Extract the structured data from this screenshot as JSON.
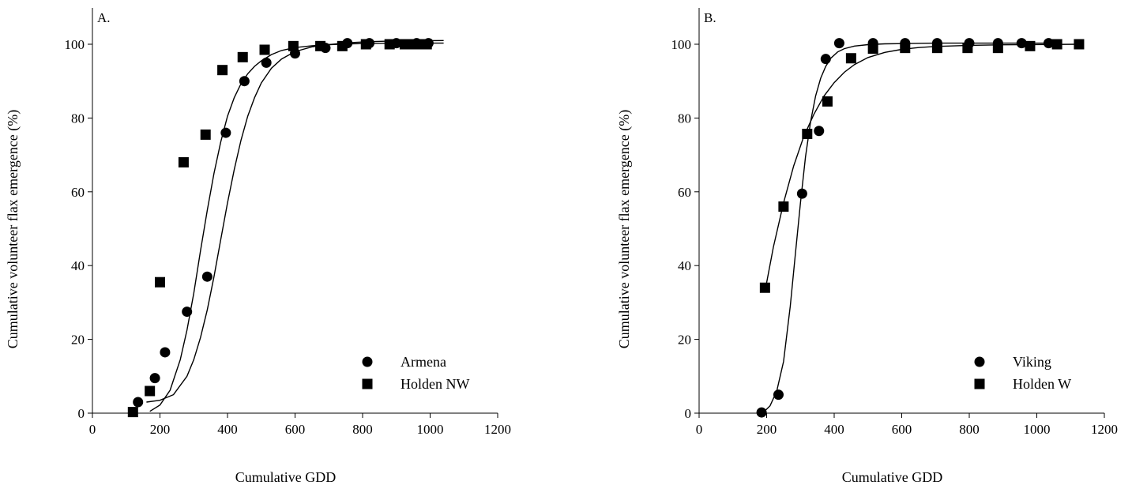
{
  "chart_data": [
    {
      "type": "scatter",
      "panel_label": "A.",
      "xlabel": "Cumulative GDD",
      "ylabel": "Cumulative volunteer flax emergence (%)",
      "xlim": [
        0,
        1200
      ],
      "ylim": [
        0,
        110
      ],
      "x_ticks": [
        0,
        200,
        400,
        600,
        800,
        1000,
        1200
      ],
      "y_ticks": [
        0,
        20,
        40,
        60,
        80,
        100
      ],
      "grid": false,
      "legend_position": "bottom-right",
      "series": [
        {
          "name": "Armena",
          "marker": "circle",
          "x": [
            135,
            185,
            215,
            280,
            340,
            395,
            450,
            515,
            600,
            690,
            755,
            820,
            900,
            960,
            995
          ],
          "y": [
            3,
            9.5,
            16.5,
            27.5,
            37,
            76,
            90,
            95,
            97.5,
            99,
            100.3,
            100.3,
            100.3,
            100.3,
            100.3
          ],
          "fit_curve": {
            "x": [
              170,
              200,
              230,
              260,
              280,
              300,
              320,
              340,
              360,
              380,
              400,
              420,
              440,
              460,
              480,
              500,
              530,
              560,
              600,
              650,
              700,
              760,
              820,
              900,
              1040
            ],
            "y": [
              0.5,
              2.2,
              6.2,
              14.5,
              22.5,
              32.5,
              44,
              55,
              65,
              73.5,
              80.5,
              85.5,
              89.3,
              92,
              94,
              95.5,
              97.2,
              98.3,
              99.1,
              99.6,
              99.9,
              100.1,
              100.2,
              100.3,
              100.3
            ]
          }
        },
        {
          "name": "Holden NW",
          "marker": "square",
          "x": [
            120,
            170,
            200,
            270,
            335,
            385,
            445,
            510,
            595,
            675,
            740,
            810,
            880,
            925,
            945,
            970,
            990
          ],
          "y": [
            0.3,
            6,
            35.5,
            68,
            75.5,
            93,
            96.5,
            98.5,
            99.5,
            99.5,
            99.5,
            100,
            100,
            100,
            100,
            100,
            100
          ],
          "fit_curve": {
            "x": [
              160,
              200,
              240,
              280,
              300,
              320,
              340,
              360,
              380,
              400,
              420,
              440,
              460,
              480,
              500,
              530,
              560,
              600,
              650,
              700,
              760,
              820,
              900,
              1040
            ],
            "y": [
              3,
              3.5,
              5,
              10,
              14.5,
              20.5,
              28,
              37,
              47,
              57,
              66,
              74,
              80.5,
              85.5,
              89.5,
              93.5,
              96,
              98,
              99.3,
              99.9,
              100.4,
              100.7,
              100.9,
              101
            ]
          }
        }
      ]
    },
    {
      "type": "scatter",
      "panel_label": "B.",
      "xlabel": "Cumulative GDD",
      "ylabel": "Cumulative volunteer flax emergence (%)",
      "xlim": [
        0,
        1200
      ],
      "ylim": [
        0,
        110
      ],
      "x_ticks": [
        0,
        200,
        400,
        600,
        800,
        1000,
        1200
      ],
      "y_ticks": [
        0,
        20,
        40,
        60,
        80,
        100
      ],
      "grid": false,
      "legend_position": "bottom-right",
      "series": [
        {
          "name": "Viking",
          "marker": "circle",
          "x": [
            185,
            235,
            305,
            355,
            375,
            415,
            515,
            610,
            705,
            800,
            885,
            955,
            1035
          ],
          "y": [
            0.2,
            5,
            59.5,
            76.5,
            96,
            100.3,
            100.3,
            100.3,
            100.3,
            100.3,
            100.3,
            100.3,
            100.3
          ],
          "fit_curve": {
            "x": [
              190,
              210,
              230,
              250,
              270,
              285,
              300,
              315,
              330,
              345,
              360,
              375,
              390,
              410,
              430,
              460,
              500,
              550,
              620,
              700,
              800,
              900,
              1000,
              1060
            ],
            "y": [
              0.2,
              2,
              6,
              14,
              29,
              43,
              57,
              69.5,
              79,
              86,
              90.8,
              94,
              96.2,
              97.9,
              98.8,
              99.5,
              99.9,
              100.1,
              100.2,
              100.3,
              100.3,
              100.3,
              100.3,
              100.3
            ]
          }
        },
        {
          "name": "Holden W",
          "marker": "square",
          "x": [
            195,
            250,
            320,
            380,
            450,
            515,
            610,
            705,
            795,
            885,
            980,
            1060,
            1125
          ],
          "y": [
            34,
            56,
            75.7,
            84.5,
            96.2,
            98.8,
            99,
            99,
            99,
            99,
            99.5,
            100,
            100
          ],
          "fit_curve": {
            "x": [
              195,
              220,
              250,
              280,
              310,
              340,
              370,
              400,
              430,
              460,
              500,
              550,
              600,
              650,
              700,
              800,
              900,
              1000,
              1125
            ],
            "y": [
              33,
              45,
              57,
              67,
              75,
              81,
              86,
              89.6,
              92.4,
              94.5,
              96.4,
              97.8,
              98.6,
              99.1,
              99.4,
              99.7,
              99.85,
              99.92,
              100
            ]
          }
        }
      ]
    }
  ]
}
